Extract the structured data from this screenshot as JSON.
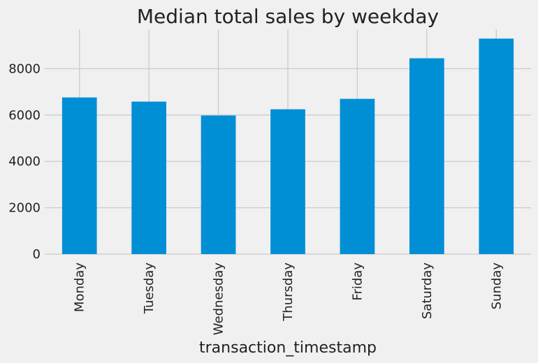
{
  "chart_data": {
    "type": "bar",
    "title": "Median total sales by weekday",
    "xlabel": "transaction_timestamp",
    "ylabel": "",
    "categories": [
      "Monday",
      "Tuesday",
      "Wednesday",
      "Thursday",
      "Friday",
      "Saturday",
      "Sunday"
    ],
    "values": [
      6760,
      6580,
      5980,
      6250,
      6700,
      8450,
      9300
    ],
    "ylim": [
      0,
      9700
    ],
    "yticks": [
      0,
      2000,
      4000,
      6000,
      8000
    ],
    "grid": true,
    "bar_color": "#008fd5",
    "background_color": "#f0f0f0"
  }
}
